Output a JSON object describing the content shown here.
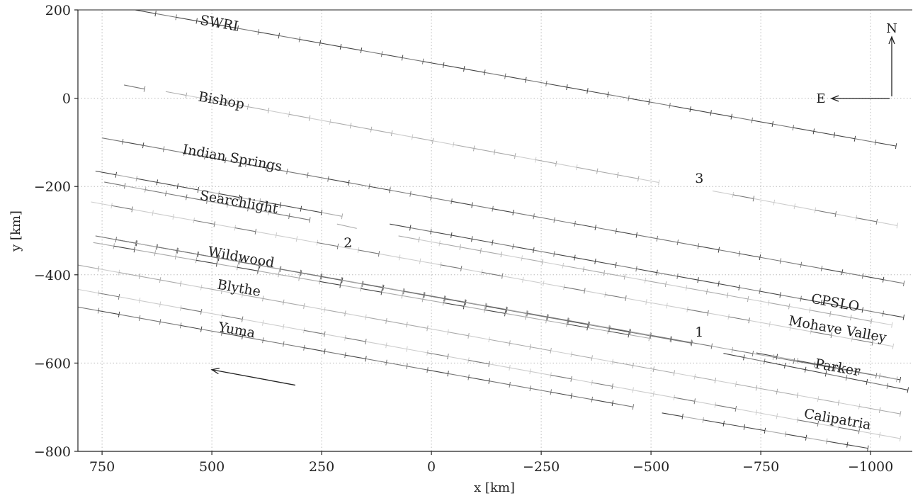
{
  "chart_data": {
    "type": "line",
    "title": "",
    "xlabel": "x [km]",
    "ylabel": "y [km]",
    "xlim": [
      805,
      -1095
    ],
    "ylim": [
      -800,
      200
    ],
    "x_ticks": [
      750,
      500,
      250,
      0,
      -250,
      -500,
      -750,
      -1000
    ],
    "x_tick_labels": [
      "750",
      "500",
      "250",
      "0",
      "−250",
      "−500",
      "−750",
      "−1000"
    ],
    "y_ticks": [
      200,
      0,
      -200,
      -400,
      -600,
      -800
    ],
    "y_tick_labels": [
      "200",
      "0",
      "−200",
      "−400",
      "−600",
      "−800"
    ],
    "grid": true,
    "grid_style": "dotted",
    "colors": {
      "grid": "#bbbbbb",
      "axis": "#222222",
      "dark": "#444444",
      "mid": "#777777",
      "light": "#aaaaaa",
      "faint": "#cccccc"
    },
    "series": [
      {
        "segments": [
          [
            [
              675,
              200
            ],
            [
              -1095,
              -115
            ]
          ]
        ]
      },
      {
        "segments": [
          [
            [
              700,
              30
            ],
            [
              650,
              20
            ]
          ],
          [
            [
              605,
              15
            ],
            [
              -540,
              -195
            ]
          ],
          [
            [
              -640,
              -210
            ],
            [
              -1095,
              -295
            ]
          ]
        ]
      },
      {
        "segments": [
          [
            [
              750,
              -90
            ],
            [
              -1095,
              -423
            ]
          ]
        ]
      },
      {
        "segments": [
          [
            [
              765,
              -165
            ],
            [
              190,
              -270
            ]
          ],
          [
            [
              215,
              -285
            ],
            [
              170,
              -295
            ]
          ],
          [
            [
              95,
              -285
            ],
            [
              -1095,
              -500
            ]
          ]
        ]
      },
      {
        "segments": [
          [
            [
              745,
              -190
            ],
            [
              265,
              -278
            ]
          ],
          [
            [
              75,
              -312
            ],
            [
              -1095,
              -522
            ]
          ]
        ]
      },
      {
        "segments": [
          [
            [
              775,
              -235
            ],
            [
              -1095,
              -570
            ]
          ]
        ]
      },
      {
        "segments": [
          [
            [
              765,
              -312
            ],
            [
              -620,
              -560
            ]
          ],
          [
            [
              -740,
              -577
            ],
            [
              -1095,
              -643
            ]
          ]
        ]
      },
      {
        "segments": [
          [
            [
              770,
              -327
            ],
            [
              -515,
              -547
            ]
          ],
          [
            [
              -665,
              -578
            ],
            [
              -1095,
              -663
            ]
          ]
        ]
      },
      {
        "segments": [
          [
            [
              720,
              -320
            ],
            [
              -1095,
              -643
            ]
          ]
        ]
      },
      {
        "segments": [
          [
            [
              805,
              -378
            ],
            [
              -1095,
              -720
            ]
          ]
        ]
      },
      {
        "segments": [
          [
            [
              805,
              -433
            ],
            [
              -1095,
              -776
            ]
          ]
        ]
      },
      {
        "segments": [
          [
            [
              805,
              -473
            ],
            [
              -480,
              -703
            ]
          ],
          [
            [
              -525,
              -713
            ],
            [
              -1035,
              -800
            ]
          ]
        ]
      }
    ],
    "line_labels": [
      {
        "text": "SWRI",
        "at": [
          485,
          160
        ],
        "angle": 10
      },
      {
        "text": "Bishop",
        "at": [
          480,
          -15
        ],
        "angle": 10
      },
      {
        "text": "Indian Springs",
        "at": [
          455,
          -145
        ],
        "angle": 10
      },
      {
        "text": "Searchlight",
        "at": [
          440,
          -245
        ],
        "angle": 10
      },
      {
        "text": "Wildwood",
        "at": [
          435,
          -370
        ],
        "angle": 10
      },
      {
        "text": "Blythe",
        "at": [
          440,
          -440
        ],
        "angle": 10
      },
      {
        "text": "Yuma",
        "at": [
          445,
          -535
        ],
        "angle": 10
      },
      {
        "text": "CPSLO",
        "at": [
          -918,
          -473
        ],
        "angle": 10
      },
      {
        "text": "Mohave Valley",
        "at": [
          -923,
          -533
        ],
        "angle": 10
      },
      {
        "text": "Parker",
        "at": [
          -923,
          -620
        ],
        "angle": 10
      },
      {
        "text": "Calipatria",
        "at": [
          -923,
          -737
        ],
        "angle": 10
      }
    ],
    "markers": [
      {
        "text": "1",
        "at": [
          -610,
          -540
        ]
      },
      {
        "text": "2",
        "at": [
          190,
          -338
        ]
      },
      {
        "text": "3",
        "at": [
          -610,
          -192
        ]
      }
    ],
    "direction_arrow": {
      "from": [
        310,
        -650
      ],
      "to": [
        500,
        -615
      ]
    },
    "compass": {
      "north": "N",
      "east": "E"
    }
  }
}
